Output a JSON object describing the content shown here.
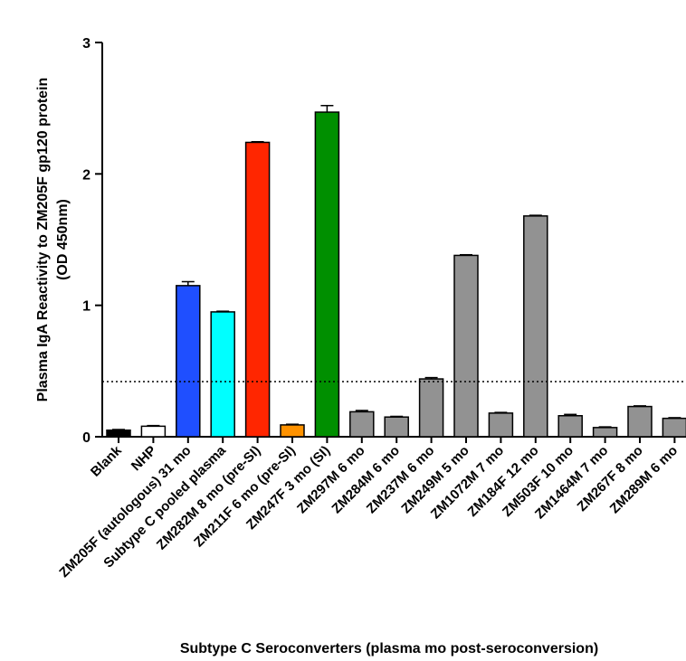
{
  "chart_data": {
    "type": "bar",
    "ylabel": [
      "Plasma IgA Reactivity to ZM205F gp120 protein",
      "(OD 450nm)"
    ],
    "xlabel": "Subtype C Seroconverters (plasma mo post-seroconversion)",
    "categories": [
      "Blank",
      "NHP",
      "ZM205F (autologous) 31 mo",
      "Subtype C pooled plasma",
      "ZM282M 8 mo (pre-SI)",
      "ZM211F 6 mo (pre-SI)",
      "ZM247F 3 mo (SI)",
      "ZM297M 6 mo",
      "ZM284M 6 mo",
      "ZM237M 6 mo",
      "ZM249M 5 mo",
      "ZM1072M 7 mo",
      "ZM184F 12 mo",
      "ZM503F 10 mo",
      "ZM1464M 7 mo",
      "ZM267F 8 mo",
      "ZM289M 6 mo"
    ],
    "values": [
      0.05,
      0.08,
      1.15,
      0.95,
      2.24,
      0.09,
      2.47,
      0.19,
      0.15,
      0.44,
      1.38,
      0.18,
      1.68,
      0.16,
      0.07,
      0.23,
      0.14
    ],
    "errors": [
      0.005,
      0.005,
      0.03,
      0.005,
      0.005,
      0.005,
      0.05,
      0.01,
      0.005,
      0.01,
      0.005,
      0.005,
      0.005,
      0.01,
      0.005,
      0.005,
      0.005
    ],
    "colors": [
      "#000000",
      "#ffffff",
      "#1f4fff",
      "#00ffff",
      "#ff2600",
      "#ff9200",
      "#008f00",
      "#929292",
      "#929292",
      "#929292",
      "#929292",
      "#929292",
      "#929292",
      "#929292",
      "#929292",
      "#929292",
      "#929292"
    ],
    "threshold": 0.42,
    "ylim": [
      0,
      3
    ],
    "yticks": [
      0,
      1,
      2,
      3
    ]
  }
}
